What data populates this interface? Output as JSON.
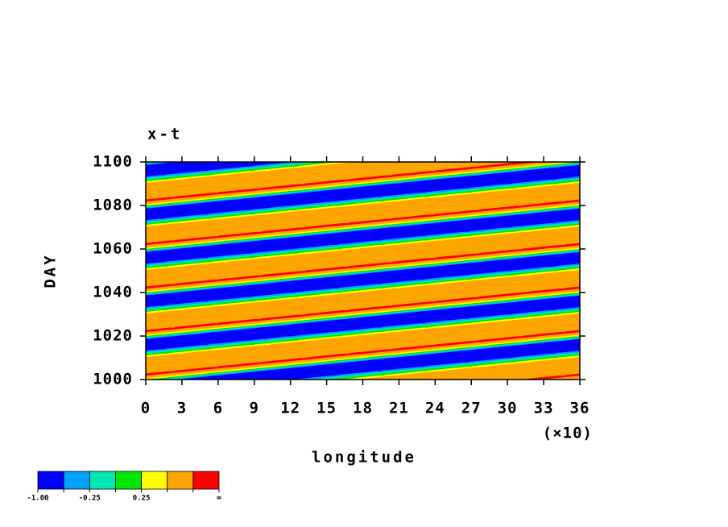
{
  "chart_data": {
    "type": "contour",
    "title": "x-t",
    "x_label": "longitude",
    "y_label": "DAY",
    "x_multiplier": "(×10)",
    "xlim": [
      0,
      36
    ],
    "ylim": [
      1000,
      1100
    ],
    "xticks": [
      0,
      3,
      6,
      9,
      12,
      15,
      18,
      21,
      24,
      27,
      30,
      33,
      36
    ],
    "yticks": [
      1000,
      1020,
      1040,
      1060,
      1080,
      1100
    ],
    "levels": [
      {
        "value": -1,
        "label": "-1.00"
      },
      -0.5,
      {
        "value": -0.25,
        "label": "-0.25"
      },
      0,
      {
        "value": 0.25,
        "label": "0.25"
      },
      0.5,
      1,
      {
        "value": null,
        "label": "∞"
      }
    ],
    "colors": [
      "#0000ff",
      "#00a0ff",
      "#00e6b4",
      "#00e600",
      "#ffff00",
      "#ffa500",
      "#ff0000"
    ],
    "x": [
      0,
      3.6,
      7.2,
      10.8,
      14.4,
      18,
      21.6,
      25.2,
      28.8,
      32.4,
      36
    ],
    "y": [
      1000,
      1002,
      1004,
      1006,
      1008,
      1010,
      1012,
      1014,
      1016,
      1018,
      1020,
      1022,
      1024,
      1026,
      1028,
      1030,
      1032,
      1034,
      1036,
      1038,
      1040,
      1042,
      1044,
      1046,
      1048,
      1050,
      1052,
      1054,
      1056,
      1058,
      1060,
      1062,
      1064,
      1066,
      1068,
      1070,
      1072,
      1074,
      1076,
      1078,
      1080,
      1082,
      1084,
      1086,
      1088,
      1090,
      1092,
      1094,
      1096,
      1098,
      1100
    ],
    "z": [
      [
        0.2,
        -0.9,
        -0.95,
        -0.8,
        -0.1,
        0.6,
        0.7,
        0.8,
        0.9,
        1.05,
        0.2
      ],
      [
        1.05,
        0.2,
        -0.9,
        -0.95,
        -0.8,
        -0.1,
        0.6,
        0.7,
        0.8,
        0.9,
        1.05
      ],
      [
        0.9,
        1.05,
        0.2,
        -0.9,
        -0.95,
        -0.8,
        -0.1,
        0.6,
        0.7,
        0.8,
        0.9
      ],
      [
        0.8,
        0.9,
        1.05,
        0.2,
        -0.9,
        -0.95,
        -0.8,
        -0.1,
        0.6,
        0.7,
        0.8
      ],
      [
        0.7,
        0.8,
        0.9,
        1.05,
        0.2,
        -0.9,
        -0.95,
        -0.8,
        -0.1,
        0.6,
        0.7
      ],
      [
        0.6,
        0.7,
        0.8,
        0.9,
        1.05,
        0.2,
        -0.9,
        -0.95,
        -0.8,
        -0.1,
        0.6
      ],
      [
        -0.1,
        0.6,
        0.7,
        0.8,
        0.9,
        1.05,
        0.2,
        -0.9,
        -0.95,
        -0.8,
        -0.1
      ],
      [
        -0.8,
        -0.1,
        0.6,
        0.7,
        0.8,
        0.9,
        1.05,
        0.2,
        -0.9,
        -0.95,
        -0.8
      ],
      [
        -0.95,
        -0.8,
        -0.1,
        0.6,
        0.7,
        0.8,
        0.9,
        1.05,
        0.2,
        -0.9,
        -0.95
      ],
      [
        -0.9,
        -0.95,
        -0.8,
        -0.1,
        0.6,
        0.7,
        0.8,
        0.9,
        1.05,
        0.2,
        -0.9
      ],
      [
        0.2,
        -0.9,
        -0.95,
        -0.8,
        -0.1,
        0.6,
        0.7,
        0.8,
        0.9,
        1.05,
        0.2
      ],
      [
        1.05,
        0.2,
        -0.9,
        -0.95,
        -0.8,
        -0.1,
        0.6,
        0.7,
        0.8,
        0.9,
        1.05
      ],
      [
        0.9,
        1.05,
        0.2,
        -0.9,
        -0.95,
        -0.8,
        -0.1,
        0.6,
        0.7,
        0.8,
        0.9
      ],
      [
        0.8,
        0.9,
        1.05,
        0.2,
        -0.9,
        -0.95,
        -0.8,
        -0.1,
        0.6,
        0.7,
        0.8
      ],
      [
        0.7,
        0.8,
        0.9,
        1.05,
        0.2,
        -0.9,
        -0.95,
        -0.8,
        -0.1,
        0.6,
        0.7
      ],
      [
        0.6,
        0.7,
        0.8,
        0.9,
        1.05,
        0.2,
        -0.9,
        -0.95,
        -0.8,
        -0.1,
        0.6
      ],
      [
        -0.1,
        0.6,
        0.7,
        0.8,
        0.9,
        1.05,
        0.2,
        -0.9,
        -0.95,
        -0.8,
        -0.1
      ],
      [
        -0.8,
        -0.1,
        0.6,
        0.7,
        0.8,
        0.9,
        1.05,
        0.2,
        -0.9,
        -0.95,
        -0.8
      ],
      [
        -0.95,
        -0.8,
        -0.1,
        0.6,
        0.7,
        0.8,
        0.9,
        1.05,
        0.2,
        -0.9,
        -0.95
      ],
      [
        -0.9,
        -0.95,
        -0.8,
        -0.1,
        0.6,
        0.7,
        0.8,
        0.9,
        1.05,
        0.2,
        -0.9
      ],
      [
        0.2,
        -0.9,
        -0.95,
        -0.8,
        -0.1,
        0.6,
        0.7,
        0.8,
        0.9,
        1.05,
        0.2
      ],
      [
        1.05,
        0.2,
        -0.9,
        -0.95,
        -0.8,
        -0.1,
        0.6,
        0.7,
        0.8,
        0.9,
        1.05
      ],
      [
        0.9,
        1.05,
        0.2,
        -0.9,
        -0.95,
        -0.8,
        -0.1,
        0.6,
        0.7,
        0.8,
        0.9
      ],
      [
        0.8,
        0.9,
        1.05,
        0.2,
        -0.9,
        -0.95,
        -0.8,
        -0.1,
        0.6,
        0.7,
        0.8
      ],
      [
        0.7,
        0.8,
        0.9,
        1.05,
        0.2,
        -0.9,
        -0.95,
        -0.8,
        -0.1,
        0.6,
        0.7
      ],
      [
        0.6,
        0.7,
        0.8,
        0.9,
        1.05,
        0.2,
        -0.9,
        -0.95,
        -0.8,
        -0.1,
        0.6
      ],
      [
        -0.1,
        0.6,
        0.7,
        0.8,
        0.9,
        1.05,
        0.2,
        -0.9,
        -0.95,
        -0.8,
        -0.1
      ],
      [
        -0.8,
        -0.1,
        0.6,
        0.7,
        0.8,
        0.9,
        1.05,
        0.2,
        -0.9,
        -0.95,
        -0.8
      ],
      [
        -0.95,
        -0.8,
        -0.1,
        0.6,
        0.7,
        0.8,
        0.9,
        1.05,
        0.2,
        -0.9,
        -0.95
      ],
      [
        -0.9,
        -0.95,
        -0.8,
        -0.1,
        0.6,
        0.7,
        0.8,
        0.9,
        1.05,
        0.2,
        -0.9
      ],
      [
        0.2,
        -0.9,
        -0.95,
        -0.8,
        -0.1,
        0.6,
        0.7,
        0.8,
        0.9,
        1.05,
        0.2
      ],
      [
        1.05,
        0.2,
        -0.9,
        -0.95,
        -0.8,
        -0.1,
        0.6,
        0.7,
        0.8,
        0.9,
        1.05
      ],
      [
        0.9,
        1.05,
        0.2,
        -0.9,
        -0.95,
        -0.8,
        -0.1,
        0.6,
        0.7,
        0.8,
        0.9
      ],
      [
        0.8,
        0.9,
        1.05,
        0.2,
        -0.9,
        -0.95,
        -0.8,
        -0.1,
        0.6,
        0.7,
        0.8
      ],
      [
        0.7,
        0.8,
        0.9,
        1.05,
        0.2,
        -0.9,
        -0.95,
        -0.8,
        -0.1,
        0.6,
        0.7
      ],
      [
        0.6,
        0.7,
        0.8,
        0.9,
        1.05,
        0.2,
        -0.9,
        -0.95,
        -0.8,
        -0.1,
        0.6
      ],
      [
        -0.1,
        0.6,
        0.7,
        0.8,
        0.9,
        1.05,
        0.2,
        -0.9,
        -0.95,
        -0.8,
        -0.1
      ],
      [
        -0.8,
        -0.1,
        0.6,
        0.7,
        0.8,
        0.9,
        1.05,
        0.2,
        -0.9,
        -0.95,
        -0.8
      ],
      [
        -0.95,
        -0.8,
        -0.1,
        0.6,
        0.7,
        0.8,
        0.9,
        1.05,
        0.2,
        -0.9,
        -0.95
      ],
      [
        -0.9,
        -0.95,
        -0.8,
        -0.1,
        0.6,
        0.7,
        0.8,
        0.9,
        1.05,
        0.2,
        -0.9
      ],
      [
        0.2,
        -0.9,
        -0.95,
        -0.8,
        -0.1,
        0.6,
        0.7,
        0.8,
        0.9,
        1.05,
        0.2
      ],
      [
        1.05,
        0.2,
        -0.9,
        -0.95,
        -0.8,
        -0.1,
        0.6,
        0.7,
        0.8,
        0.9,
        1.05
      ],
      [
        0.9,
        1.05,
        0.2,
        -0.9,
        -0.95,
        -0.8,
        -0.1,
        0.6,
        0.7,
        0.8,
        0.9
      ],
      [
        0.8,
        0.9,
        1.05,
        0.2,
        -0.9,
        -0.95,
        -0.8,
        -0.1,
        0.6,
        0.7,
        0.8
      ],
      [
        0.7,
        0.8,
        0.9,
        1.05,
        0.2,
        -0.9,
        -0.95,
        -0.8,
        -0.1,
        0.6,
        0.7
      ],
      [
        0.6,
        0.7,
        0.8,
        0.9,
        1.05,
        0.2,
        -0.9,
        -0.95,
        -0.8,
        -0.1,
        0.6
      ],
      [
        -0.1,
        0.6,
        0.7,
        0.8,
        0.9,
        1.05,
        0.2,
        -0.9,
        -0.95,
        -0.8,
        -0.1
      ],
      [
        -0.8,
        -0.1,
        0.6,
        0.7,
        0.8,
        0.9,
        1.05,
        0.2,
        -0.9,
        -0.95,
        -0.8
      ],
      [
        -0.95,
        -0.8,
        -0.1,
        0.6,
        0.7,
        0.8,
        0.9,
        1.05,
        0.2,
        -0.9,
        -0.95
      ],
      [
        -0.9,
        -0.95,
        -0.8,
        -0.1,
        0.6,
        0.7,
        0.8,
        0.9,
        1.05,
        0.2,
        -0.9
      ],
      [
        0.2,
        -0.9,
        -0.95,
        -0.8,
        -0.1,
        0.6,
        0.7,
        0.8,
        0.9,
        1.05,
        0.2
      ]
    ]
  }
}
